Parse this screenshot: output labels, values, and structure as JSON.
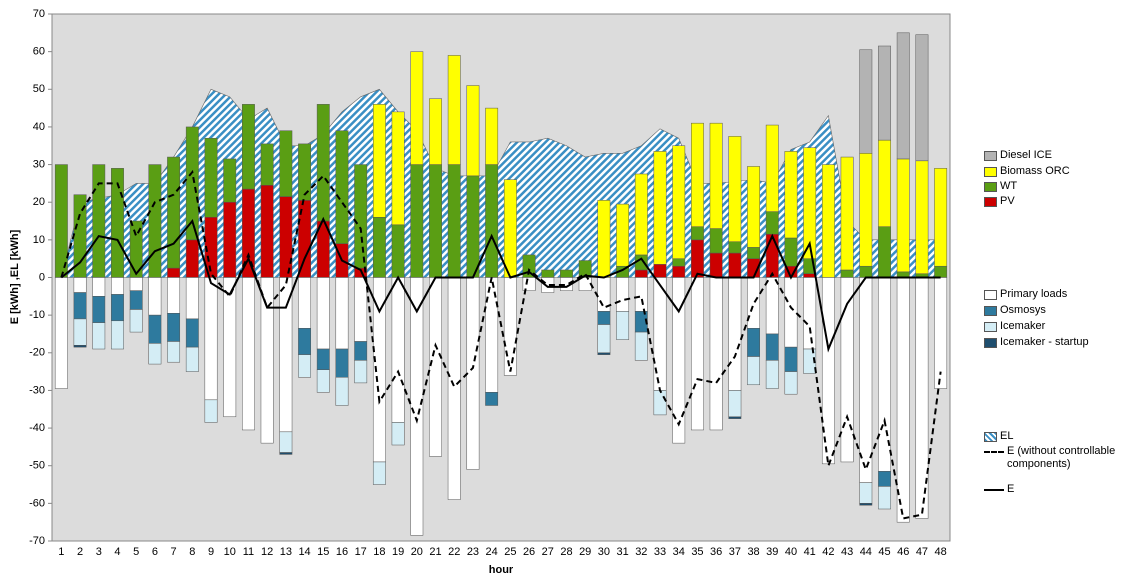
{
  "chart_data": {
    "type": "bar",
    "y_label": "E [kWh] ,EL [kWh]",
    "x_label": "hour",
    "categories": [
      "1",
      "2",
      "3",
      "4",
      "5",
      "6",
      "7",
      "8",
      "9",
      "10",
      "11",
      "12",
      "13",
      "14",
      "15",
      "16",
      "17",
      "18",
      "19",
      "20",
      "21",
      "22",
      "23",
      "24",
      "25",
      "26",
      "27",
      "28",
      "29",
      "30",
      "31",
      "32",
      "33",
      "34",
      "35",
      "36",
      "37",
      "38",
      "39",
      "40",
      "41",
      "42",
      "43",
      "44",
      "45",
      "46",
      "47",
      "48"
    ],
    "ylim": [
      -70,
      70
    ],
    "yticks": [
      -70,
      -60,
      -50,
      -40,
      -30,
      -20,
      -10,
      0,
      10,
      20,
      30,
      40,
      50,
      60,
      70
    ],
    "series": [
      {
        "name": "PV",
        "kind": "bar",
        "color": "#cc0000",
        "values": [
          0,
          0,
          0,
          0,
          0,
          0,
          2.5,
          10,
          16,
          20,
          23.5,
          24.5,
          21.5,
          20.5,
          15,
          9,
          2.5,
          0,
          0,
          0,
          0,
          0,
          0,
          0,
          0,
          0,
          0,
          0,
          0,
          0,
          0,
          2,
          3.5,
          3,
          10,
          6.5,
          6.5,
          5,
          11.5,
          3,
          1,
          0,
          0,
          0,
          0,
          0,
          0,
          0
        ]
      },
      {
        "name": "WT",
        "kind": "bar",
        "color": "#5a9e14",
        "values": [
          30,
          22,
          30,
          29,
          15,
          30,
          29.5,
          30,
          21,
          11.5,
          22.5,
          11,
          17.5,
          15,
          31,
          30,
          27.5,
          16,
          14,
          30,
          30,
          30,
          27,
          30,
          0,
          6,
          2,
          2,
          4.5,
          0,
          3,
          4,
          0,
          2,
          3.5,
          6.5,
          3,
          3,
          6,
          7.5,
          4,
          0,
          2,
          3,
          13.5,
          1.5,
          1,
          3
        ]
      },
      {
        "name": "Biomass ORC",
        "kind": "bar",
        "color": "#ffff00",
        "values": [
          0,
          0,
          0,
          0,
          0,
          0,
          0,
          0,
          0,
          0,
          0,
          0,
          0,
          0,
          0,
          0,
          0,
          30,
          30,
          30,
          17.5,
          29,
          24,
          15,
          26,
          0,
          0,
          0,
          0,
          20.5,
          16.5,
          21.5,
          30,
          30,
          27.5,
          28,
          28,
          21.5,
          23,
          23,
          29.5,
          30,
          30,
          30,
          23,
          30,
          30,
          26
        ]
      },
      {
        "name": "Diesel ICE",
        "kind": "bar",
        "color": "#b3b3b3",
        "values": [
          0,
          0,
          0,
          0,
          0,
          0,
          0,
          0,
          0,
          0,
          0,
          0,
          0,
          0,
          0,
          0,
          0,
          0,
          0,
          0,
          0,
          0,
          0,
          0,
          0,
          0,
          0,
          0,
          0,
          0,
          0,
          0,
          0,
          0,
          0,
          0,
          0,
          0,
          0,
          0,
          0,
          0,
          0,
          27.5,
          25,
          33.5,
          33.5,
          0
        ]
      },
      {
        "name": "Primary loads",
        "kind": "bar",
        "color": "#ffffff",
        "values": [
          -29.5,
          -4,
          -5,
          -4.5,
          -3.5,
          -10,
          -9.5,
          -11,
          -32.5,
          -37,
          -40.5,
          -44,
          -41,
          -13.5,
          -19,
          -19,
          -17,
          -49,
          -38.5,
          -68.5,
          -47.5,
          -59,
          -51,
          -30.5,
          -26,
          -3.5,
          -4,
          -3.5,
          -3.5,
          -9,
          -9,
          -9,
          -30,
          -44,
          -40.5,
          -40.5,
          -30,
          -13.5,
          -15,
          -18.5,
          -19,
          -49.5,
          -49,
          -54.5,
          -51.5,
          -65,
          -64,
          -29.5
        ]
      },
      {
        "name": "Osmosys",
        "kind": "bar",
        "color": "#2e7a9e",
        "values": [
          0,
          -7,
          -7,
          -7,
          -5,
          -7.5,
          -7.5,
          -7.5,
          0,
          0,
          0,
          0,
          0,
          -7,
          -5.5,
          -7.5,
          -5,
          0,
          0,
          0,
          0,
          0,
          0,
          -3.5,
          0,
          0,
          0,
          0,
          0,
          -3.5,
          0,
          -5.5,
          0,
          0,
          0,
          0,
          0,
          -7.5,
          -7,
          -6.5,
          0,
          0,
          0,
          0,
          -4,
          0,
          0,
          0
        ]
      },
      {
        "name": "Icemaker",
        "kind": "bar",
        "color": "#d4edf5",
        "values": [
          0,
          -7,
          -7,
          -7.5,
          -6,
          -5.5,
          -5.5,
          -6.5,
          -6,
          0,
          0,
          0,
          -5.5,
          -6,
          -6,
          -7.5,
          -6,
          -6,
          -6,
          0,
          0,
          0,
          0,
          0,
          0,
          0,
          0,
          0,
          0,
          -7.5,
          -7.5,
          -7.5,
          -6.5,
          0,
          0,
          0,
          -7,
          -7.5,
          -7.5,
          -6,
          -6.5,
          0,
          0,
          -5.5,
          -6,
          0,
          0,
          0
        ]
      },
      {
        "name": "Icemaker - startup",
        "kind": "bar",
        "color": "#1f4e6e",
        "values": [
          0,
          -0.5,
          0,
          0,
          0,
          0,
          0,
          0,
          0,
          0,
          0,
          0,
          -0.5,
          0,
          0,
          0,
          0,
          0,
          0,
          0,
          0,
          0,
          0,
          0,
          0,
          0,
          0,
          0,
          0,
          -0.5,
          0,
          0,
          0,
          0,
          0,
          0,
          -0.5,
          0,
          0,
          0,
          0,
          0,
          0,
          -0.5,
          0,
          0,
          0,
          0
        ]
      },
      {
        "name": "EL",
        "kind": "area",
        "color": "#3a8fc4",
        "values": [
          0,
          20,
          21,
          22,
          25,
          25,
          32,
          40,
          50,
          48,
          42,
          45,
          35,
          35,
          38,
          44,
          48,
          50,
          44,
          39,
          29,
          27,
          27,
          27,
          36,
          36,
          37,
          35,
          32,
          33,
          33,
          35,
          39.5,
          37,
          25,
          25,
          25.5,
          26,
          25,
          34,
          36,
          43,
          15,
          10,
          10,
          10,
          10,
          10
        ]
      },
      {
        "name": "E (without controllable components)",
        "kind": "line",
        "dash": true,
        "color": "#000000",
        "values": [
          0,
          17,
          25,
          25,
          11,
          20,
          22,
          28,
          1,
          -5,
          6,
          -8,
          -2,
          22,
          27,
          20,
          13,
          -33,
          -25,
          -38,
          -18,
          -29,
          -24,
          0,
          -25,
          2,
          -2,
          -2,
          1,
          -8,
          -6,
          -5,
          -30,
          -39,
          -27,
          -28,
          -21,
          -7,
          1,
          -8,
          -13,
          -50,
          -37,
          -51,
          -38,
          -64,
          -63,
          -25
        ]
      },
      {
        "name": "E",
        "kind": "line",
        "dash": false,
        "color": "#000000",
        "values": [
          0,
          4,
          11,
          10,
          1,
          7,
          9,
          15,
          -1.5,
          -4.5,
          5,
          -8,
          -8,
          5,
          15.5,
          4.5,
          2,
          -9,
          0,
          -9,
          0,
          0,
          0,
          11,
          0,
          1.5,
          -2.5,
          -2.5,
          0.5,
          0,
          2,
          5,
          -2,
          -9,
          1,
          0,
          0,
          0,
          11,
          0,
          9,
          -19,
          -7,
          0,
          0,
          0,
          0,
          0
        ]
      }
    ]
  }
}
